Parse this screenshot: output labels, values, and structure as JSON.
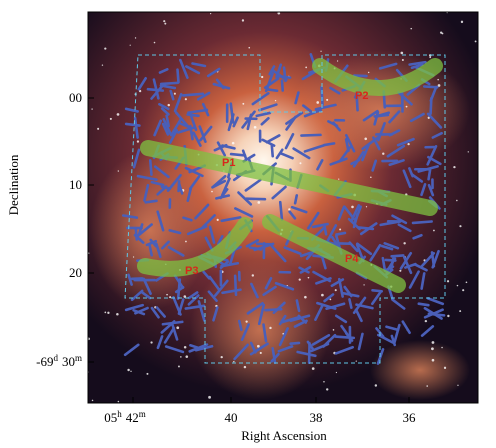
{
  "axes": {
    "x_title": "Right Ascension",
    "y_title": "Declination",
    "x_ticks": [
      [
        "05",
        "h",
        "42",
        "m"
      ],
      [
        "40"
      ],
      [
        "38"
      ],
      [
        "36"
      ]
    ],
    "y_ticks": [
      [
        "00"
      ],
      [
        "10"
      ],
      [
        "20"
      ],
      [
        "-69",
        "d",
        "30",
        "m"
      ]
    ]
  },
  "regions": [
    "P1",
    "P2",
    "P3",
    "P4"
  ]
}
